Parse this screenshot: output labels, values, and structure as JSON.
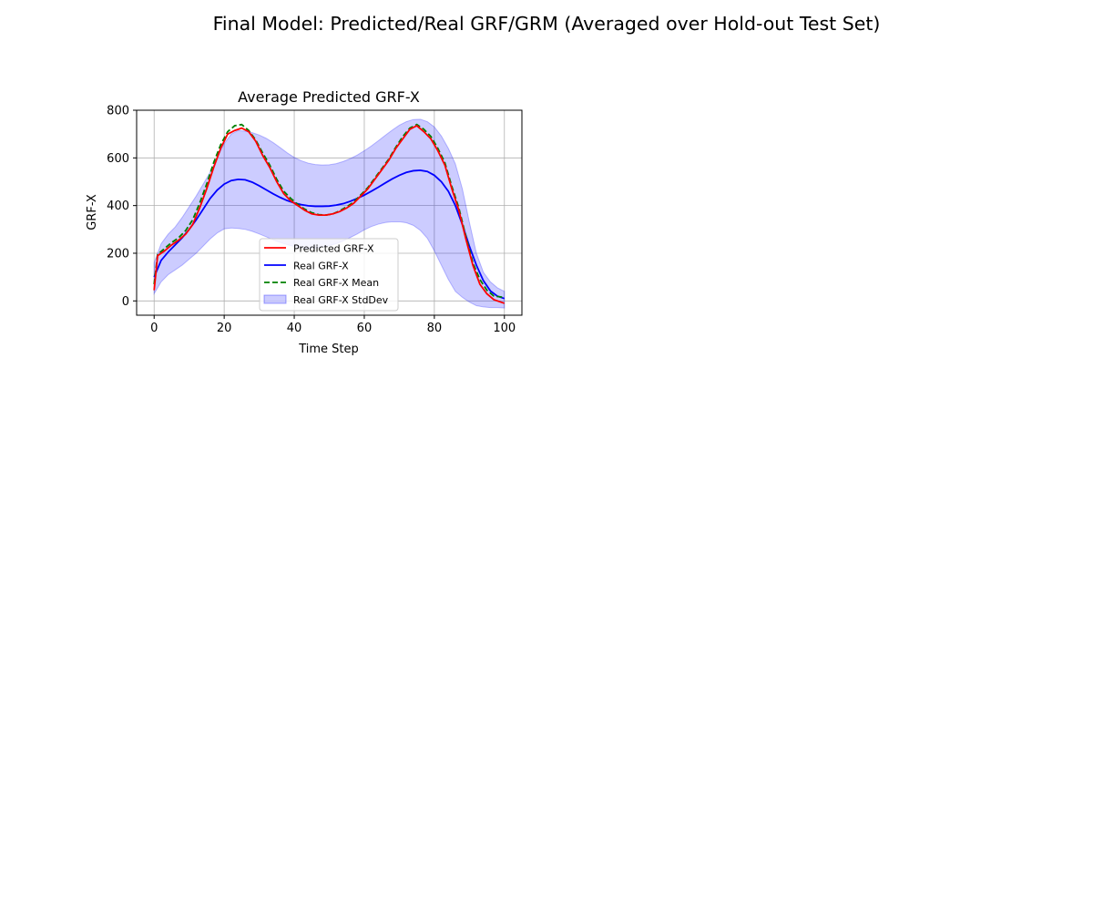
{
  "figure": {
    "suptitle": "Final Model: Predicted/Real GRF/GRM (Averaged over Hold-out Test Set)"
  },
  "colors": {
    "predicted": "#ff0000",
    "real": "#0000ff",
    "real_mean": "#008000",
    "stddev_fill": "#0000ff"
  },
  "chart_data": {
    "type": "line",
    "title": "Average Predicted GRF-X",
    "xlabel": "Time Step",
    "ylabel": "GRF-X",
    "xlim": [
      -5,
      105
    ],
    "ylim": [
      -60,
      800
    ],
    "xticks": [
      0,
      20,
      40,
      60,
      80,
      100
    ],
    "yticks": [
      0,
      200,
      400,
      600,
      800
    ],
    "grid": true,
    "legend_position": "lower center",
    "legend": [
      {
        "label": "Predicted GRF-X",
        "style": "solid-red"
      },
      {
        "label": "Real GRF-X",
        "style": "solid-blue"
      },
      {
        "label": "Real GRF-X Mean",
        "style": "dashed-green"
      },
      {
        "label": "Real GRF-X StdDev",
        "style": "fill-blue"
      }
    ],
    "series": [
      {
        "name": "Predicted GRF-X",
        "x": [
          0,
          1,
          3,
          5,
          7,
          9,
          11,
          13,
          15,
          17,
          19,
          21,
          23,
          25,
          27,
          29,
          31,
          33,
          35,
          37,
          39,
          41,
          43,
          45,
          47,
          49,
          51,
          53,
          55,
          57,
          59,
          61,
          63,
          65,
          67,
          69,
          71,
          73,
          75,
          77,
          79,
          81,
          83,
          85,
          87,
          89,
          91,
          93,
          95,
          97,
          100
        ],
        "y": [
          45,
          190,
          210,
          235,
          255,
          280,
          320,
          390,
          470,
          560,
          640,
          700,
          715,
          725,
          710,
          670,
          610,
          560,
          500,
          450,
          420,
          400,
          380,
          365,
          360,
          360,
          365,
          375,
          390,
          410,
          440,
          470,
          510,
          550,
          590,
          640,
          680,
          720,
          735,
          710,
          680,
          630,
          570,
          470,
          380,
          260,
          150,
          70,
          30,
          5,
          -10
        ]
      },
      {
        "name": "Real GRF-X",
        "x": [
          0,
          2,
          4,
          6,
          8,
          10,
          12,
          14,
          16,
          18,
          20,
          22,
          24,
          26,
          28,
          30,
          32,
          34,
          36,
          38,
          40,
          42,
          44,
          46,
          48,
          50,
          52,
          54,
          56,
          58,
          60,
          62,
          64,
          66,
          68,
          70,
          72,
          74,
          76,
          78,
          80,
          82,
          84,
          86,
          88,
          90,
          92,
          94,
          96,
          98,
          100
        ],
        "y": [
          100,
          170,
          205,
          235,
          265,
          300,
          340,
          385,
          430,
          465,
          490,
          505,
          510,
          508,
          498,
          483,
          466,
          449,
          434,
          421,
          411,
          404,
          399,
          397,
          397,
          398,
          402,
          408,
          418,
          430,
          444,
          460,
          477,
          495,
          512,
          527,
          539,
          546,
          548,
          543,
          527,
          500,
          460,
          400,
          320,
          230,
          150,
          85,
          42,
          20,
          10
        ]
      },
      {
        "name": "Real GRF-X Mean",
        "x": [
          0,
          1,
          3,
          5,
          7,
          9,
          11,
          13,
          15,
          17,
          19,
          21,
          23,
          25,
          27,
          29,
          31,
          33,
          35,
          37,
          39,
          41,
          43,
          45,
          47,
          49,
          51,
          53,
          55,
          57,
          59,
          61,
          63,
          65,
          67,
          69,
          71,
          73,
          75,
          77,
          79,
          81,
          83,
          85,
          87,
          89,
          91,
          93,
          95,
          97,
          100
        ],
        "y": [
          70,
          195,
          220,
          245,
          265,
          295,
          340,
          410,
          490,
          580,
          655,
          710,
          735,
          740,
          715,
          675,
          620,
          570,
          510,
          460,
          430,
          405,
          385,
          370,
          362,
          360,
          365,
          378,
          395,
          415,
          445,
          475,
          515,
          555,
          595,
          645,
          690,
          725,
          740,
          720,
          690,
          640,
          580,
          480,
          390,
          270,
          160,
          90,
          45,
          20,
          15
        ]
      },
      {
        "name": "Real GRF-X StdDev",
        "x": [
          0,
          2,
          4,
          6,
          8,
          10,
          12,
          14,
          16,
          18,
          20,
          22,
          24,
          26,
          28,
          30,
          32,
          34,
          36,
          38,
          40,
          42,
          44,
          46,
          48,
          50,
          52,
          54,
          56,
          58,
          60,
          62,
          64,
          66,
          68,
          70,
          72,
          74,
          76,
          78,
          80,
          82,
          84,
          86,
          88,
          90,
          92,
          94,
          96,
          98,
          100
        ],
        "upper": [
          160,
          240,
          280,
          310,
          350,
          395,
          440,
          490,
          540,
          600,
          660,
          700,
          715,
          712,
          706,
          696,
          682,
          664,
          643,
          621,
          602,
          588,
          578,
          572,
          570,
          571,
          576,
          585,
          597,
          612,
          630,
          650,
          672,
          695,
          717,
          737,
          752,
          761,
          762,
          752,
          730,
          692,
          640,
          575,
          470,
          330,
          200,
          120,
          80,
          55,
          40
        ],
        "lower": [
          30,
          80,
          110,
          130,
          150,
          175,
          200,
          230,
          260,
          285,
          302,
          306,
          304,
          300,
          292,
          281,
          269,
          256,
          245,
          236,
          228,
          222,
          220,
          222,
          226,
          232,
          240,
          252,
          266,
          281,
          298,
          312,
          322,
          329,
          332,
          332,
          328,
          317,
          296,
          263,
          210,
          150,
          90,
          40,
          15,
          -5,
          -20,
          -25,
          -28,
          -28,
          -30
        ]
      }
    ]
  }
}
